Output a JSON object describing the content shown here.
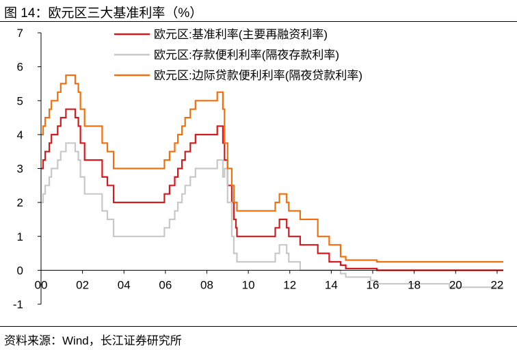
{
  "header": {
    "title": "图 14：欧元区三大基准利率（%）"
  },
  "footer": {
    "source": "资料来源：Wind，长江证券研究所"
  },
  "colors": {
    "mro": "#d7191c",
    "deposit": "#c8c8c8",
    "lending": "#f26f0a",
    "axis": "#000000"
  },
  "chart_data": {
    "type": "line",
    "step": true,
    "title": "图 14：欧元区三大基准利率（%）",
    "xlabel": "",
    "ylabel": "",
    "xlim": [
      0,
      22.3
    ],
    "ylim": [
      -1,
      7
    ],
    "x_ticks": [
      {
        "value": 0,
        "label": "00"
      },
      {
        "value": 2,
        "label": "02"
      },
      {
        "value": 4,
        "label": "04"
      },
      {
        "value": 6,
        "label": "06"
      },
      {
        "value": 8,
        "label": "08"
      },
      {
        "value": 10,
        "label": "10"
      },
      {
        "value": 12,
        "label": "12"
      },
      {
        "value": 14,
        "label": "14"
      },
      {
        "value": 16,
        "label": "16"
      },
      {
        "value": 18,
        "label": "18"
      },
      {
        "value": 20,
        "label": "20"
      },
      {
        "value": 22,
        "label": "22"
      }
    ],
    "y_ticks": [
      {
        "value": -1,
        "label": "-1"
      },
      {
        "value": 0,
        "label": "0"
      },
      {
        "value": 1,
        "label": "1"
      },
      {
        "value": 2,
        "label": "2"
      },
      {
        "value": 3,
        "label": "3"
      },
      {
        "value": 4,
        "label": "4"
      },
      {
        "value": 5,
        "label": "5"
      },
      {
        "value": 6,
        "label": "6"
      },
      {
        "value": 7,
        "label": "7"
      }
    ],
    "grid": false,
    "legend_position": "top-right",
    "series": [
      {
        "name": "欧元区:基准利率(主要再融资利率)",
        "color_key": "mro",
        "points": [
          [
            0,
            3.0
          ],
          [
            0.1,
            3.25
          ],
          [
            0.2,
            3.5
          ],
          [
            0.4,
            3.75
          ],
          [
            0.5,
            4.0
          ],
          [
            0.8,
            4.25
          ],
          [
            0.95,
            4.5
          ],
          [
            1.2,
            4.75
          ],
          [
            1.65,
            4.5
          ],
          [
            1.8,
            4.25
          ],
          [
            1.9,
            3.75
          ],
          [
            2.1,
            3.25
          ],
          [
            2.95,
            2.75
          ],
          [
            3.2,
            2.5
          ],
          [
            3.5,
            2.0
          ],
          [
            5.95,
            2.25
          ],
          [
            6.2,
            2.5
          ],
          [
            6.45,
            2.75
          ],
          [
            6.6,
            3.0
          ],
          [
            6.8,
            3.25
          ],
          [
            6.95,
            3.5
          ],
          [
            7.2,
            3.75
          ],
          [
            7.45,
            4.0
          ],
          [
            8.5,
            4.25
          ],
          [
            8.77,
            3.75
          ],
          [
            8.85,
            3.25
          ],
          [
            9.0,
            2.5
          ],
          [
            9.2,
            2.0
          ],
          [
            9.3,
            1.5
          ],
          [
            9.4,
            1.25
          ],
          [
            9.45,
            1.0
          ],
          [
            11.3,
            1.25
          ],
          [
            11.5,
            1.5
          ],
          [
            11.85,
            1.25
          ],
          [
            11.95,
            1.0
          ],
          [
            12.5,
            0.75
          ],
          [
            13.35,
            0.5
          ],
          [
            13.9,
            0.25
          ],
          [
            14.45,
            0.15
          ],
          [
            14.7,
            0.05
          ],
          [
            16.2,
            0.0
          ],
          [
            22.3,
            0.0
          ]
        ]
      },
      {
        "name": "欧元区:存款便利利率(隔夜存款利率)",
        "color_key": "deposit",
        "points": [
          [
            0,
            2.0
          ],
          [
            0.1,
            2.25
          ],
          [
            0.2,
            2.5
          ],
          [
            0.4,
            2.75
          ],
          [
            0.5,
            3.0
          ],
          [
            0.8,
            3.25
          ],
          [
            0.95,
            3.5
          ],
          [
            1.2,
            3.75
          ],
          [
            1.65,
            3.5
          ],
          [
            1.8,
            3.25
          ],
          [
            1.9,
            2.75
          ],
          [
            2.1,
            2.25
          ],
          [
            2.95,
            1.75
          ],
          [
            3.2,
            1.5
          ],
          [
            3.5,
            1.0
          ],
          [
            5.95,
            1.25
          ],
          [
            6.2,
            1.5
          ],
          [
            6.45,
            1.75
          ],
          [
            6.6,
            2.0
          ],
          [
            6.8,
            2.25
          ],
          [
            6.95,
            2.5
          ],
          [
            7.2,
            2.75
          ],
          [
            7.45,
            3.0
          ],
          [
            8.5,
            3.25
          ],
          [
            8.77,
            2.75
          ],
          [
            8.85,
            3.0
          ],
          [
            9.0,
            2.0
          ],
          [
            9.2,
            1.0
          ],
          [
            9.3,
            0.5
          ],
          [
            9.45,
            0.25
          ],
          [
            11.3,
            0.5
          ],
          [
            11.5,
            0.75
          ],
          [
            11.85,
            0.5
          ],
          [
            11.95,
            0.25
          ],
          [
            12.5,
            0.0
          ],
          [
            14.45,
            -0.1
          ],
          [
            14.7,
            -0.2
          ],
          [
            15.9,
            -0.3
          ],
          [
            16.2,
            -0.4
          ],
          [
            19.7,
            -0.5
          ],
          [
            22.3,
            -0.5
          ]
        ]
      },
      {
        "name": "欧元区:边际贷款便利利率(隔夜贷款利率)",
        "color_key": "lending",
        "points": [
          [
            0,
            4.0
          ],
          [
            0.1,
            4.25
          ],
          [
            0.2,
            4.5
          ],
          [
            0.4,
            4.75
          ],
          [
            0.5,
            5.0
          ],
          [
            0.8,
            5.25
          ],
          [
            0.95,
            5.5
          ],
          [
            1.2,
            5.75
          ],
          [
            1.65,
            5.5
          ],
          [
            1.8,
            5.25
          ],
          [
            1.9,
            4.75
          ],
          [
            2.1,
            4.25
          ],
          [
            2.95,
            3.75
          ],
          [
            3.2,
            3.5
          ],
          [
            3.5,
            3.0
          ],
          [
            5.95,
            3.25
          ],
          [
            6.2,
            3.5
          ],
          [
            6.45,
            3.75
          ],
          [
            6.6,
            4.0
          ],
          [
            6.8,
            4.25
          ],
          [
            6.95,
            4.5
          ],
          [
            7.2,
            4.75
          ],
          [
            7.45,
            5.0
          ],
          [
            8.5,
            5.25
          ],
          [
            8.77,
            4.75
          ],
          [
            8.85,
            3.75
          ],
          [
            9.0,
            3.0
          ],
          [
            9.2,
            2.5
          ],
          [
            9.3,
            2.0
          ],
          [
            9.45,
            1.75
          ],
          [
            11.3,
            2.0
          ],
          [
            11.5,
            2.25
          ],
          [
            11.85,
            2.0
          ],
          [
            11.95,
            1.75
          ],
          [
            12.5,
            1.5
          ],
          [
            13.35,
            1.0
          ],
          [
            13.9,
            0.75
          ],
          [
            14.45,
            0.4
          ],
          [
            14.7,
            0.3
          ],
          [
            16.2,
            0.25
          ],
          [
            22.3,
            0.25
          ]
        ]
      }
    ]
  }
}
